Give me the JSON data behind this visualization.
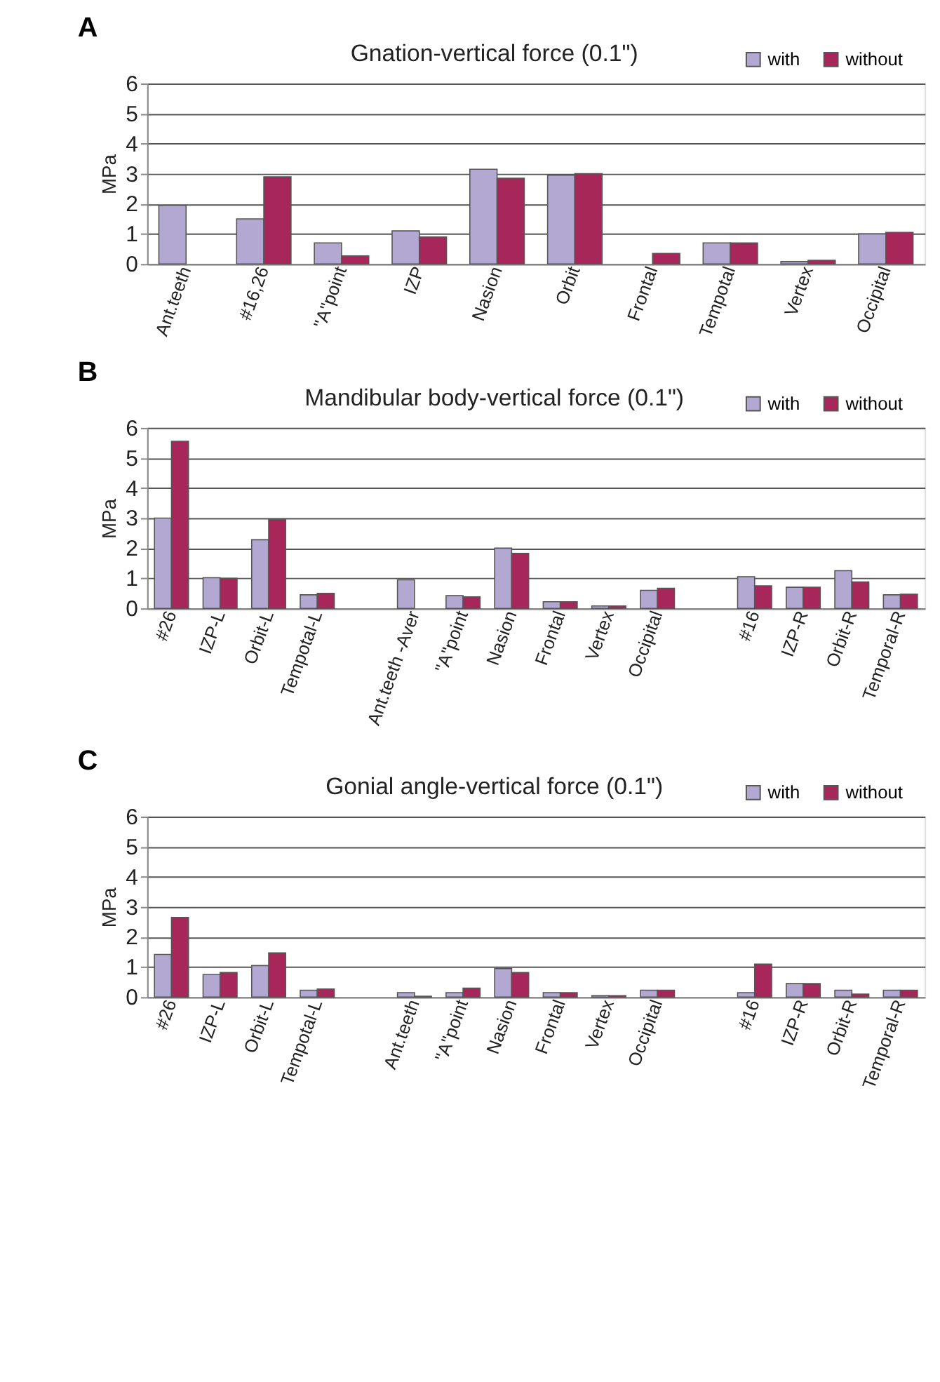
{
  "chart_data": [
    {
      "type": "bar",
      "title": "Gnation-vertical force (0.1\")",
      "ylabel": "MPa",
      "annotations": [
        "A"
      ],
      "categories": [
        "Ant.teeth",
        "#16,26",
        "\"A\"point",
        "IZP",
        "Nasion",
        "Orbit",
        "Frontal",
        "Tempotal",
        "Vertex",
        "Occipital"
      ],
      "series": [
        {
          "name": "with",
          "color": "#b2a8d2",
          "values": [
            1.95,
            1.5,
            0.7,
            1.1,
            3.15,
            2.95,
            null,
            0.7,
            0.08,
            1.0
          ]
        },
        {
          "name": "without",
          "color": "#a8275a",
          "values": [
            null,
            2.9,
            0.27,
            0.9,
            2.85,
            3.0,
            0.35,
            0.7,
            0.12,
            1.05
          ]
        }
      ],
      "ylim": [
        0,
        6
      ],
      "yticks": [
        0,
        1,
        2,
        3,
        4,
        5,
        6
      ],
      "grid": "y",
      "legend": "top right"
    },
    {
      "type": "bar",
      "title": "Mandibular body-vertical force (0.1\")",
      "ylabel": "MPa",
      "annotations": [
        "B"
      ],
      "categories": [
        "#26",
        "IZP-L",
        "Orbit-L",
        "Tempotal-L",
        null,
        "Ant.teeth -Aver",
        "\"A\"point",
        "Nasion",
        "Frontal",
        "Vertex",
        "Occipital",
        null,
        "#16",
        "IZP-R",
        "Orbit-R",
        "Temporal-R"
      ],
      "series": [
        {
          "name": "with",
          "color": "#b2a8d2",
          "values": [
            3.0,
            1.02,
            2.28,
            0.45,
            null,
            0.95,
            0.42,
            2.0,
            0.22,
            0.08,
            0.6,
            null,
            1.05,
            0.7,
            1.25,
            0.45
          ]
        },
        {
          "name": "without",
          "color": "#a8275a",
          "values": [
            5.55,
            1.0,
            2.95,
            0.5,
            null,
            null,
            0.38,
            1.83,
            0.22,
            0.08,
            0.67,
            null,
            0.75,
            0.7,
            0.88,
            0.47
          ]
        }
      ],
      "ylim": [
        0,
        6
      ],
      "yticks": [
        0,
        1,
        2,
        3,
        4,
        5,
        6
      ],
      "grid": "y",
      "legend": "top right"
    },
    {
      "type": "bar",
      "title": "Gonial angle-vertical force (0.1\")",
      "ylabel": "MPa",
      "annotations": [
        "C"
      ],
      "categories": [
        "#26",
        "IZP-L",
        "Orbit-L",
        "Tempotal-L",
        null,
        "Ant.teeth",
        "\"A\"point",
        "Nasion",
        "Frontal",
        "Vertex",
        "Occipital",
        null,
        "#16",
        "IZP-R",
        "Orbit-R",
        "Temporal-R"
      ],
      "series": [
        {
          "name": "with",
          "color": "#b2a8d2",
          "values": [
            1.42,
            0.75,
            1.05,
            0.23,
            null,
            0.15,
            0.15,
            0.95,
            0.15,
            0.05,
            0.23,
            null,
            0.15,
            0.45,
            0.23,
            0.23
          ]
        },
        {
          "name": "without",
          "color": "#a8275a",
          "values": [
            2.65,
            0.82,
            1.47,
            0.27,
            null,
            0.03,
            0.3,
            0.82,
            0.15,
            0.05,
            0.23,
            null,
            1.1,
            0.45,
            0.1,
            0.23
          ]
        }
      ],
      "ylim": [
        0,
        6
      ],
      "yticks": [
        0,
        1,
        2,
        3,
        4,
        5,
        6
      ],
      "grid": "y",
      "legend": "top right"
    }
  ]
}
